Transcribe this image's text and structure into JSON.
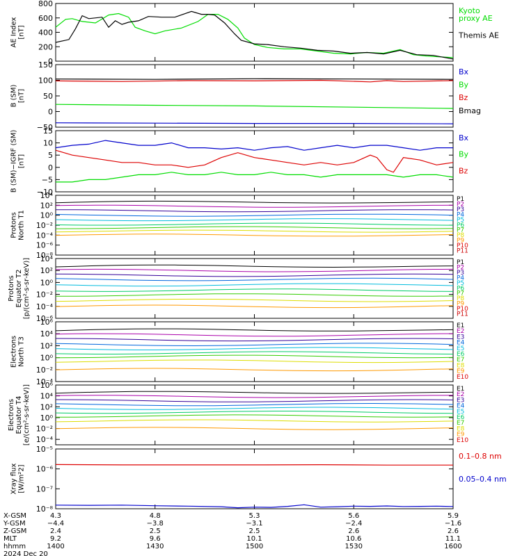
{
  "figure": {
    "ephemeris_rows": [
      "X-GSM",
      "Y-GSM",
      "Z-GSM",
      "MLT",
      "hhmm"
    ],
    "date": "2024 Dec 20",
    "ticks": [
      {
        "x": "4.3",
        "y": "−4.4",
        "z": "2.4",
        "mlt": "9.2",
        "hhmm": "1400"
      },
      {
        "x": "4.8",
        "y": "−3.8",
        "z": "2.5",
        "mlt": "9.6",
        "hhmm": "1430"
      },
      {
        "x": "5.3",
        "y": "−3.1",
        "z": "2.5",
        "mlt": "10.1",
        "hhmm": "1500"
      },
      {
        "x": "5.6",
        "y": "−2.4",
        "z": "2.6",
        "mlt": "10.6",
        "hhmm": "1530"
      },
      {
        "x": "5.9",
        "y": "−1.6",
        "z": "2.6",
        "mlt": "11.1",
        "hhmm": "1600"
      }
    ]
  },
  "colors": {
    "black": "#000000",
    "green": "#00dd00",
    "red": "#dd0000",
    "blue": "#0000cc",
    "p": [
      "#000000",
      "#aa00aa",
      "#330099",
      "#0066dd",
      "#00bbdd",
      "#00cc66",
      "#33cc00",
      "#dddd00",
      "#ff9900",
      "#dd0000",
      "#cc0000"
    ]
  },
  "chart_data": [
    {
      "type": "line",
      "id": "ae",
      "ylabel": [
        "AE Index",
        "[nT]"
      ],
      "ylim": [
        0,
        800
      ],
      "yticks": [
        "0",
        "200",
        "400",
        "600",
        "800"
      ],
      "yvals": [
        0,
        200,
        400,
        600,
        800
      ],
      "xlim": [
        0,
        120
      ],
      "series": [
        {
          "name": "Kyoto proxy AE",
          "color": "green",
          "x": [
            0,
            3,
            5,
            8,
            12,
            16,
            19,
            22,
            24,
            27,
            30,
            33,
            38,
            43,
            46,
            49,
            52,
            55,
            57,
            60,
            64,
            69,
            74,
            79,
            84,
            89,
            94,
            99,
            104,
            108,
            112,
            116,
            120
          ],
          "y": [
            470,
            580,
            590,
            550,
            530,
            640,
            660,
            610,
            470,
            420,
            380,
            420,
            460,
            550,
            650,
            650,
            580,
            460,
            320,
            230,
            190,
            170,
            170,
            140,
            110,
            100,
            120,
            110,
            160,
            90,
            70,
            60,
            50
          ]
        },
        {
          "name": "Themis AE",
          "color": "black",
          "x": [
            0,
            4,
            6,
            8,
            10,
            14,
            16,
            18,
            20,
            22,
            25,
            28,
            32,
            36,
            41,
            44,
            46,
            48,
            51,
            54,
            56,
            60,
            64,
            69,
            74,
            79,
            84,
            89,
            94,
            99,
            104,
            109,
            114,
            120
          ],
          "y": [
            260,
            300,
            450,
            630,
            590,
            610,
            470,
            560,
            510,
            540,
            560,
            620,
            610,
            610,
            690,
            650,
            650,
            640,
            530,
            380,
            290,
            240,
            230,
            200,
            180,
            150,
            140,
            110,
            120,
            100,
            150,
            90,
            80,
            30
          ]
        }
      ],
      "legend": [
        {
          "text": [
            "Kyoto",
            "proxy AE"
          ],
          "color": "green"
        },
        {
          "text": [
            "Themis AE"
          ],
          "color": "black"
        }
      ]
    },
    {
      "type": "line",
      "id": "b_sm",
      "ylabel": [
        "B (SM)",
        "[nT]"
      ],
      "ylim": [
        -50,
        150
      ],
      "yticks": [
        "−50",
        "0",
        "50",
        "100",
        "150"
      ],
      "yvals": [
        -50,
        0,
        50,
        100,
        150
      ],
      "xlim": [
        0,
        120
      ],
      "series": [
        {
          "name": "Bmag",
          "color": "black",
          "x": [
            0,
            30,
            60,
            90,
            120
          ],
          "y": [
            104,
            103,
            105,
            104,
            103
          ]
        },
        {
          "name": "Bz",
          "color": "red",
          "x": [
            0,
            20,
            40,
            60,
            80,
            95,
            100,
            105,
            120
          ],
          "y": [
            98,
            96,
            99,
            98,
            100,
            95,
            99,
            96,
            99
          ]
        },
        {
          "name": "By",
          "color": "green",
          "x": [
            0,
            30,
            60,
            90,
            120
          ],
          "y": [
            23,
            20,
            18,
            14,
            10
          ]
        },
        {
          "name": "Bx",
          "color": "blue",
          "x": [
            0,
            30,
            60,
            90,
            120
          ],
          "y": [
            -36,
            -37,
            -38,
            -38,
            -39
          ]
        }
      ],
      "legend": [
        {
          "text": [
            "Bx"
          ],
          "color": "blue"
        },
        {
          "text": [
            "By"
          ],
          "color": "green"
        },
        {
          "text": [
            "Bz"
          ],
          "color": "red"
        },
        {
          "text": [
            "Bmag"
          ],
          "color": "black"
        }
      ]
    },
    {
      "type": "line",
      "id": "b_igrf",
      "ylabel": [
        "B (SM)−IGRF (SM)",
        "[nT]"
      ],
      "ylim": [
        -10,
        15
      ],
      "yticks": [
        "−10",
        "−5",
        "0",
        "5",
        "10",
        "15"
      ],
      "yvals": [
        -10,
        -5,
        0,
        5,
        10,
        15
      ],
      "xlim": [
        0,
        120
      ],
      "series": [
        {
          "name": "Bx",
          "color": "blue",
          "x": [
            0,
            5,
            10,
            15,
            20,
            25,
            30,
            35,
            40,
            45,
            50,
            55,
            60,
            65,
            70,
            75,
            80,
            85,
            90,
            95,
            100,
            105,
            110,
            115,
            120
          ],
          "y": [
            8,
            9,
            9.5,
            11,
            10,
            9,
            9,
            10,
            8,
            8,
            7.5,
            8,
            7,
            8,
            8.5,
            7,
            8,
            9,
            8,
            9,
            9,
            8,
            7,
            8,
            8
          ]
        },
        {
          "name": "Bz",
          "color": "red",
          "x": [
            0,
            5,
            10,
            15,
            20,
            25,
            30,
            35,
            40,
            45,
            50,
            55,
            60,
            65,
            70,
            75,
            80,
            85,
            90,
            95,
            97,
            100,
            102,
            105,
            110,
            115,
            120
          ],
          "y": [
            7,
            5,
            4,
            3,
            2,
            2,
            1,
            1,
            0,
            1,
            4,
            6,
            4,
            3,
            2,
            1,
            2,
            1,
            2,
            5,
            4,
            -1,
            -2,
            4,
            3,
            1,
            2
          ]
        },
        {
          "name": "By",
          "color": "green",
          "x": [
            0,
            5,
            10,
            15,
            20,
            25,
            30,
            35,
            40,
            45,
            50,
            55,
            60,
            65,
            70,
            75,
            80,
            85,
            90,
            95,
            100,
            105,
            110,
            115,
            120
          ],
          "y": [
            -6,
            -6,
            -5,
            -5,
            -4,
            -3,
            -3,
            -2,
            -3,
            -3,
            -2,
            -3,
            -3,
            -2,
            -3,
            -3,
            -4,
            -3,
            -3,
            -3,
            -3,
            -4,
            -3,
            -3,
            -4
          ]
        }
      ],
      "legend": [
        {
          "text": [
            "Bx"
          ],
          "color": "blue"
        },
        {
          "text": [
            "By"
          ],
          "color": "green"
        },
        {
          "text": [
            "Bz"
          ],
          "color": "red"
        }
      ]
    },
    {
      "type": "line",
      "id": "p_t1",
      "log": true,
      "ylabel": [
        "Protons",
        "North T1"
      ],
      "ylim": [
        -8,
        4
      ],
      "yticks": [
        "10⁻⁸",
        "10⁻⁶",
        "10⁻⁴",
        "10⁻²",
        "10⁰",
        "10²",
        "10⁴"
      ],
      "yvals": [
        -8,
        -6,
        -4,
        -2,
        0,
        2,
        4
      ],
      "xlim": [
        0,
        120
      ],
      "levels": [
        2.5,
        1.8,
        0.9,
        0.0,
        -0.9,
        -1.8,
        -2.5,
        -3.2,
        -4.0
      ],
      "legend_labels": [
        "P1",
        "P2",
        "P3",
        "P4",
        "P5",
        "P6",
        "P7",
        "P8",
        "P9",
        "P10",
        "P11"
      ]
    },
    {
      "type": "line",
      "id": "p_t2",
      "log": true,
      "ylabel": [
        "Protons",
        "Equator T2",
        "[p/(cm²‑s‑sr‑keV)]"
      ],
      "ylim": [
        -6,
        4
      ],
      "yticks": [
        "10⁻⁶",
        "10⁻⁴",
        "10⁻²",
        "10⁰",
        "10²",
        "10⁴"
      ],
      "yvals": [
        -6,
        -4,
        -2,
        0,
        2,
        4
      ],
      "xlim": [
        0,
        120
      ],
      "levels": [
        2.6,
        2.0,
        1.2,
        0.5,
        -0.4,
        -1.3,
        -2.1,
        -3.0,
        -4.0
      ],
      "legend_labels": [
        "P1",
        "P2",
        "P3",
        "P4",
        "P5",
        "P6",
        "P7",
        "P8",
        "P9",
        "P10",
        "P11"
      ]
    },
    {
      "type": "line",
      "id": "e_t3",
      "log": true,
      "ylabel": [
        "Electrons",
        "North T3"
      ],
      "ylim": [
        -4,
        6
      ],
      "yticks": [
        "10⁻⁴",
        "10⁻²",
        "10⁰",
        "10²",
        "10⁴",
        "10⁶"
      ],
      "yvals": [
        -4,
        -2,
        0,
        2,
        4,
        6
      ],
      "xlim": [
        0,
        120
      ],
      "levels": [
        4.5,
        3.8,
        3.0,
        2.2,
        1.5,
        0.8,
        0.2,
        -0.6,
        -2.0
      ],
      "legend_labels": [
        "E1",
        "E2",
        "E3",
        "E4",
        "E5",
        "E6",
        "E7",
        "E8",
        "E9",
        "E10"
      ]
    },
    {
      "type": "line",
      "id": "e_t4",
      "log": true,
      "ylabel": [
        "Electrons",
        "Equator T4",
        "[e/(cm²‑s‑sr‑keV)]"
      ],
      "ylim": [
        -5,
        6
      ],
      "yticks": [
        "10⁻⁴",
        "10⁻²",
        "10⁰",
        "10²",
        "10⁴",
        "10⁶"
      ],
      "yvals": [
        -4,
        -2,
        0,
        2,
        4,
        6
      ],
      "xlim": [
        0,
        120
      ],
      "levels": [
        4.5,
        3.9,
        3.1,
        2.4,
        1.7,
        1.0,
        0.3,
        -0.6,
        -2.0
      ],
      "legend_labels": [
        "E1",
        "E2",
        "E3",
        "E4",
        "E5",
        "E6",
        "E7",
        "E8",
        "E9",
        "E10"
      ]
    },
    {
      "type": "line",
      "id": "xray",
      "log": true,
      "ylabel": [
        "Xray flux",
        "[W/m²2]"
      ],
      "ylim": [
        -8,
        -5
      ],
      "yticks": [
        "10⁻⁸",
        "10⁻⁷",
        "10⁻⁶",
        "10⁻⁵"
      ],
      "yvals": [
        -8,
        -7,
        -6,
        -5
      ],
      "xlim": [
        0,
        120
      ],
      "series": [
        {
          "name": "0.1–0.8 nm",
          "color": "red",
          "x": [
            0,
            20,
            40,
            60,
            80,
            100,
            120
          ],
          "y": [
            -5.78,
            -5.8,
            -5.8,
            -5.8,
            -5.79,
            -5.81,
            -5.81
          ]
        },
        {
          "name": "0.05–0.4 nm",
          "color": "blue",
          "x": [
            0,
            10,
            20,
            30,
            40,
            50,
            55,
            60,
            65,
            70,
            75,
            80,
            85,
            90,
            95,
            100,
            105,
            110,
            115,
            120
          ],
          "y": [
            -7.82,
            -7.83,
            -7.82,
            -7.85,
            -7.87,
            -7.9,
            -7.95,
            -7.92,
            -7.93,
            -7.88,
            -7.8,
            -7.92,
            -7.9,
            -7.87,
            -7.88,
            -7.86,
            -7.89,
            -7.88,
            -7.87,
            -7.89
          ]
        }
      ],
      "legend": [
        {
          "text": [
            "0.1–0.8 nm"
          ],
          "color": "red"
        },
        {
          "text": [
            "0.05–0.4 nm"
          ],
          "color": "blue"
        }
      ]
    }
  ]
}
